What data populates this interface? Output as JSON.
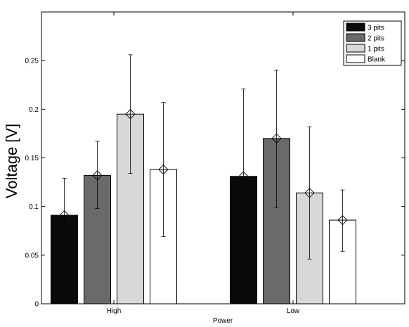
{
  "chart_data": {
    "type": "bar",
    "title": "",
    "xlabel": "Power",
    "ylabel": "Voltage [V]",
    "categories": [
      "High",
      "Low"
    ],
    "ylim": [
      0,
      0.3
    ],
    "yticks": [
      "0",
      "0.05",
      "0.1",
      "0.15",
      "0.2",
      "0.25"
    ],
    "ytick_values": [
      0,
      0.05,
      0.1,
      0.15,
      0.2,
      0.25
    ],
    "grid": false,
    "legend_position": "top-right",
    "series": [
      {
        "name": "3 pits",
        "color": "#0a0a0a",
        "values": [
          0.091,
          0.131
        ],
        "error_low": [
          0.08,
          0.131
        ],
        "error_high": [
          0.129,
          0.221
        ]
      },
      {
        "name": "2 pits",
        "color": "#6a6a6a",
        "values": [
          0.132,
          0.17
        ],
        "error_low": [
          0.098,
          0.099
        ],
        "error_high": [
          0.167,
          0.24
        ]
      },
      {
        "name": "1 pits",
        "color": "#d8d8d8",
        "values": [
          0.195,
          0.114
        ],
        "error_low": [
          0.134,
          0.046
        ],
        "error_high": [
          0.256,
          0.182
        ]
      },
      {
        "name": "Blank",
        "color": "#ffffff",
        "values": [
          0.138,
          0.086
        ],
        "error_low": [
          0.069,
          0.054
        ],
        "error_high": [
          0.207,
          0.117
        ]
      }
    ]
  }
}
